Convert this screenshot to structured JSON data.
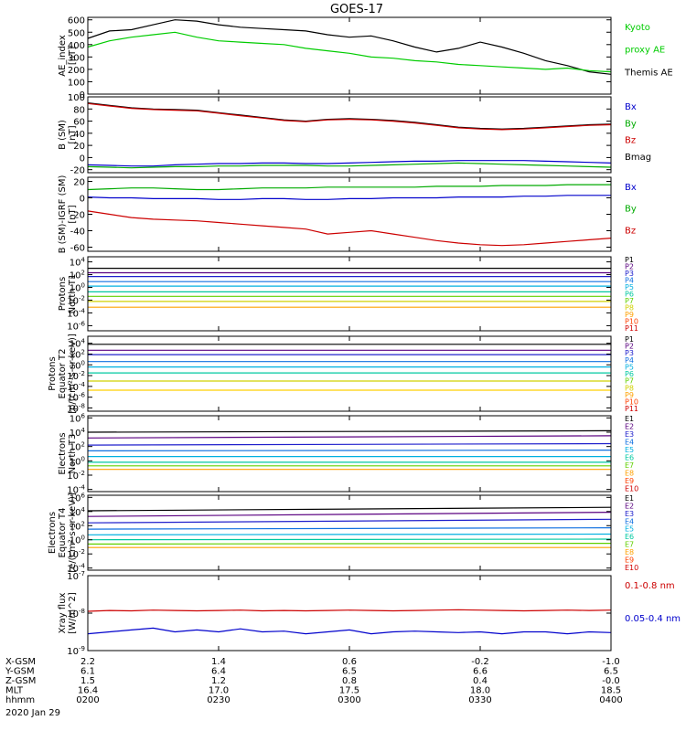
{
  "title": "GOES-17",
  "panels": [
    {
      "id": "ae",
      "ylabel": [
        "AE_index",
        "[nT]"
      ],
      "ticks": [
        "600",
        "500",
        "400",
        "300",
        "200",
        "100",
        "0"
      ],
      "tick_values": [
        600,
        500,
        400,
        300,
        200,
        100,
        0
      ],
      "ylim": [
        0,
        620
      ],
      "log": false,
      "legend": [
        {
          "text": "Kyoto",
          "color": "#00cc00"
        },
        {
          "text": "proxy AE",
          "color": "#00cc00"
        },
        {
          "text": "Themis AE",
          "color": "#000000"
        }
      ],
      "series": [
        {
          "color": "#000000",
          "values": [
            450,
            510,
            520,
            560,
            600,
            590,
            560,
            540,
            530,
            520,
            510,
            480,
            460,
            470,
            430,
            380,
            340,
            370,
            420,
            380,
            330,
            270,
            230,
            180,
            160
          ]
        },
        {
          "color": "#00cc00",
          "values": [
            380,
            430,
            460,
            480,
            500,
            460,
            430,
            420,
            410,
            400,
            370,
            350,
            330,
            300,
            290,
            270,
            260,
            240,
            230,
            220,
            210,
            200,
            210,
            190,
            180
          ]
        }
      ]
    },
    {
      "id": "b",
      "ylabel": [
        "B (SM)",
        "[nT]"
      ],
      "ticks": [
        "100",
        "80",
        "60",
        "40",
        "20",
        "0",
        "-20"
      ],
      "tick_values": [
        100,
        80,
        60,
        40,
        20,
        0,
        -20
      ],
      "ylim": [
        -25,
        100
      ],
      "log": false,
      "legend": [
        {
          "text": "Bx",
          "color": "#0000cc"
        },
        {
          "text": "By",
          "color": "#00aa00"
        },
        {
          "text": "Bz",
          "color": "#cc0000"
        },
        {
          "text": "Bmag",
          "color": "#000000"
        }
      ],
      "series": [
        {
          "color": "#000000",
          "values": [
            90,
            86,
            82,
            80,
            79,
            78,
            74,
            70,
            66,
            62,
            60,
            63,
            64,
            63,
            61,
            58,
            54,
            50,
            48,
            47,
            48,
            50,
            52,
            54,
            55
          ]
        },
        {
          "color": "#cc0000",
          "values": [
            89,
            85,
            81,
            79,
            78,
            77,
            73,
            69,
            65,
            61,
            59,
            62,
            63,
            62,
            60,
            57,
            53,
            49,
            47,
            46,
            47,
            49,
            51,
            53,
            54
          ]
        },
        {
          "color": "#0000cc",
          "values": [
            -12,
            -13,
            -14,
            -14,
            -12,
            -11,
            -10,
            -10,
            -9,
            -9,
            -10,
            -10,
            -9,
            -8,
            -7,
            -6,
            -6,
            -5,
            -5,
            -5,
            -5,
            -6,
            -7,
            -8,
            -9
          ]
        },
        {
          "color": "#00aa00",
          "values": [
            -15,
            -16,
            -17,
            -16,
            -15,
            -15,
            -14,
            -14,
            -13,
            -13,
            -13,
            -14,
            -14,
            -13,
            -12,
            -11,
            -10,
            -9,
            -10,
            -11,
            -12,
            -13,
            -14,
            -15,
            -16
          ]
        }
      ]
    },
    {
      "id": "db",
      "ylabel": [
        "B (SM)-IGRF (SM)",
        "[nT]"
      ],
      "ticks": [
        "20",
        "0",
        "-20",
        "-40",
        "-60"
      ],
      "tick_values": [
        20,
        0,
        -20,
        -40,
        -60
      ],
      "ylim": [
        -65,
        25
      ],
      "log": false,
      "legend": [
        {
          "text": "Bx",
          "color": "#0000cc"
        },
        {
          "text": "By",
          "color": "#00aa00"
        },
        {
          "text": "Bz",
          "color": "#cc0000"
        }
      ],
      "series": [
        {
          "color": "#00aa00",
          "values": [
            10,
            11,
            12,
            12,
            11,
            10,
            10,
            11,
            12,
            12,
            12,
            13,
            13,
            13,
            13,
            13,
            14,
            14,
            14,
            15,
            15,
            15,
            16,
            16,
            16
          ]
        },
        {
          "color": "#0000cc",
          "values": [
            1,
            0,
            0,
            -1,
            -1,
            -1,
            -2,
            -2,
            -1,
            -1,
            -2,
            -2,
            -1,
            -1,
            0,
            0,
            0,
            1,
            1,
            1,
            2,
            2,
            3,
            3,
            3
          ]
        },
        {
          "color": "#cc0000",
          "values": [
            -16,
            -20,
            -24,
            -26,
            -27,
            -28,
            -30,
            -32,
            -34,
            -36,
            -38,
            -44,
            -42,
            -40,
            -44,
            -48,
            -52,
            -55,
            -57,
            -58,
            -57,
            -55,
            -53,
            -51,
            -49
          ]
        }
      ]
    },
    {
      "id": "pn",
      "ylabel": [
        "Protons",
        "North T1"
      ],
      "ticks": [
        "10^4",
        "10^2",
        "10^0",
        "10^-2",
        "10^-4",
        "10^-6"
      ],
      "tick_values": [
        4,
        2,
        0,
        -2,
        -4,
        -6
      ],
      "ylim": [
        -6.8,
        4.8
      ],
      "log": true,
      "legend": [
        {
          "text": "P1",
          "color": "#000000"
        },
        {
          "text": "P2",
          "color": "#5a0080"
        },
        {
          "text": "P3",
          "color": "#2020cc"
        },
        {
          "text": "P4",
          "color": "#1070e0"
        },
        {
          "text": "P5",
          "color": "#00b0e0"
        },
        {
          "text": "P6",
          "color": "#00c8a0"
        },
        {
          "text": "P7",
          "color": "#60d000"
        },
        {
          "text": "P8",
          "color": "#d0d000"
        },
        {
          "text": "P9",
          "color": "#ffa000"
        },
        {
          "text": "P10",
          "color": "#ff4000"
        },
        {
          "text": "P11",
          "color": "#d00000"
        }
      ],
      "series": [
        {
          "color": "#000000",
          "levels": [
            3.0,
            3.0
          ]
        },
        {
          "color": "#5a0080",
          "levels": [
            2.3,
            2.3
          ]
        },
        {
          "color": "#2020cc",
          "levels": [
            1.7,
            1.7
          ]
        },
        {
          "color": "#1070e0",
          "levels": [
            0.9,
            0.9
          ]
        },
        {
          "color": "#00b0e0",
          "levels": [
            0.2,
            0.2
          ]
        },
        {
          "color": "#00c8a0",
          "levels": [
            -0.7,
            -0.7
          ]
        },
        {
          "color": "#60d000",
          "levels": [
            -1.4,
            -1.4
          ]
        },
        {
          "color": "#d0d000",
          "levels": [
            -2.2,
            -2.2
          ]
        },
        {
          "color": "#ffa000",
          "levels": [
            -3.1,
            -3.1
          ]
        }
      ]
    },
    {
      "id": "pe",
      "ylabel": [
        "Protons",
        "Equator T2",
        "[p/(cm²-s-sr-keV)]"
      ],
      "ticks": [
        "10^4",
        "10^2",
        "10^0",
        "10^-2",
        "10^-4",
        "10^-6",
        "10^-8"
      ],
      "tick_values": [
        4,
        2,
        0,
        -2,
        -4,
        -6,
        -8
      ],
      "ylim": [
        -8.6,
        5.3
      ],
      "log": true,
      "legend": [
        {
          "text": "P1",
          "color": "#000000"
        },
        {
          "text": "P2",
          "color": "#5a0080"
        },
        {
          "text": "P3",
          "color": "#2020cc"
        },
        {
          "text": "P4",
          "color": "#1070e0"
        },
        {
          "text": "P5",
          "color": "#00b0e0"
        },
        {
          "text": "P6",
          "color": "#00c8a0"
        },
        {
          "text": "P7",
          "color": "#60d000"
        },
        {
          "text": "P8",
          "color": "#d0d000"
        },
        {
          "text": "P9",
          "color": "#ffa000"
        },
        {
          "text": "P10",
          "color": "#ff4000"
        },
        {
          "text": "P11",
          "color": "#d00000"
        }
      ],
      "series": [
        {
          "color": "#000000",
          "levels": [
            3.8,
            3.8
          ]
        },
        {
          "color": "#5a0080",
          "levels": [
            2.7,
            2.7
          ]
        },
        {
          "color": "#2020cc",
          "levels": [
            1.9,
            1.9
          ]
        },
        {
          "color": "#1070e0",
          "levels": [
            0.6,
            0.6
          ]
        },
        {
          "color": "#00b0e0",
          "levels": [
            -0.4,
            -0.4
          ]
        },
        {
          "color": "#00c8a0",
          "levels": [
            -1.5,
            -1.5
          ]
        },
        {
          "color": "#d0d000",
          "levels": [
            -3.0,
            -3.0
          ]
        },
        {
          "color": "#ffd000",
          "levels": [
            -4.7,
            -4.7
          ]
        }
      ]
    },
    {
      "id": "en",
      "ylabel": [
        "Electrons",
        "North T3"
      ],
      "ticks": [
        "10^6",
        "10^4",
        "10^2",
        "10^0",
        "10^-2",
        "10^-4"
      ],
      "tick_values": [
        6,
        4,
        2,
        0,
        -2,
        -4
      ],
      "ylim": [
        -4.3,
        6.3
      ],
      "log": true,
      "legend": [
        {
          "text": "E1",
          "color": "#000000"
        },
        {
          "text": "E2",
          "color": "#5a0080"
        },
        {
          "text": "E3",
          "color": "#2020cc"
        },
        {
          "text": "E4",
          "color": "#1070e0"
        },
        {
          "text": "E5",
          "color": "#00b0e0"
        },
        {
          "text": "E6",
          "color": "#00c8a0"
        },
        {
          "text": "E7",
          "color": "#60d000"
        },
        {
          "text": "E8",
          "color": "#ffa000"
        },
        {
          "text": "E9",
          "color": "#ff4000"
        },
        {
          "text": "E10",
          "color": "#d00000"
        }
      ],
      "series": [
        {
          "color": "#000000",
          "levels": [
            4.0,
            4.2
          ]
        },
        {
          "color": "#5a0080",
          "levels": [
            3.2,
            3.5
          ]
        },
        {
          "color": "#2020cc",
          "levels": [
            2.2,
            2.4
          ]
        },
        {
          "color": "#1070e0",
          "levels": [
            1.4,
            1.5
          ]
        },
        {
          "color": "#00b0e0",
          "levels": [
            0.6,
            0.6
          ]
        },
        {
          "color": "#00c8a0",
          "levels": [
            -0.2,
            -0.2
          ]
        },
        {
          "color": "#60d000",
          "levels": [
            -0.7,
            -0.7
          ]
        },
        {
          "color": "#ffa000",
          "levels": [
            -1.2,
            -1.2
          ]
        }
      ]
    },
    {
      "id": "ee",
      "ylabel": [
        "Electrons",
        "Equator T4",
        "[e/(cm²-s-sr-keV)]"
      ],
      "ticks": [
        "10^6",
        "10^4",
        "10^2",
        "10^0",
        "10^-2",
        "10^-4"
      ],
      "tick_values": [
        6,
        4,
        2,
        0,
        -2,
        -4
      ],
      "ylim": [
        -4.3,
        6.3
      ],
      "log": true,
      "legend": [
        {
          "text": "E1",
          "color": "#000000"
        },
        {
          "text": "E2",
          "color": "#5a0080"
        },
        {
          "text": "E3",
          "color": "#2020cc"
        },
        {
          "text": "E4",
          "color": "#1070e0"
        },
        {
          "text": "E5",
          "color": "#00b0e0"
        },
        {
          "text": "E6",
          "color": "#00c8a0"
        },
        {
          "text": "E7",
          "color": "#60d000"
        },
        {
          "text": "E8",
          "color": "#ffa000"
        },
        {
          "text": "E9",
          "color": "#ff4000"
        },
        {
          "text": "E10",
          "color": "#d00000"
        }
      ],
      "series": [
        {
          "color": "#000000",
          "levels": [
            4.1,
            4.6
          ]
        },
        {
          "color": "#5a0080",
          "levels": [
            3.3,
            3.9
          ]
        },
        {
          "color": "#2020cc",
          "levels": [
            2.4,
            2.9
          ]
        },
        {
          "color": "#1070e0",
          "levels": [
            1.5,
            1.7
          ]
        },
        {
          "color": "#00b0e0",
          "levels": [
            0.7,
            0.8
          ]
        },
        {
          "color": "#00c8a0",
          "levels": [
            0.0,
            0.1
          ]
        },
        {
          "color": "#60d000",
          "levels": [
            -0.6,
            -0.5
          ]
        },
        {
          "color": "#ffa000",
          "levels": [
            -1.1,
            -1.1
          ]
        }
      ]
    },
    {
      "id": "xray",
      "ylabel": [
        "Xray flux",
        "[W/m^2]"
      ],
      "ticks": [
        "10^-7",
        "10^-8",
        "10^-9"
      ],
      "tick_values": [
        -7,
        -8,
        -9
      ],
      "ylim": [
        -9,
        -7
      ],
      "log": true,
      "legend": [
        {
          "text": "0.1-0.8 nm",
          "color": "#cc0000"
        },
        {
          "text": "0.05-0.4 nm",
          "color": "#0000cc"
        }
      ],
      "series": [
        {
          "color": "#cc0000",
          "values": [
            -7.95,
            -7.93,
            -7.94,
            -7.92,
            -7.93,
            -7.94,
            -7.93,
            -7.92,
            -7.94,
            -7.93,
            -7.94,
            -7.93,
            -7.92,
            -7.93,
            -7.94,
            -7.93,
            -7.92,
            -7.91,
            -7.92,
            -7.93,
            -7.94,
            -7.93,
            -7.92,
            -7.93,
            -7.92
          ]
        },
        {
          "color": "#0000cc",
          "values": [
            -8.55,
            -8.5,
            -8.45,
            -8.4,
            -8.5,
            -8.45,
            -8.5,
            -8.42,
            -8.5,
            -8.48,
            -8.55,
            -8.5,
            -8.45,
            -8.55,
            -8.5,
            -8.48,
            -8.5,
            -8.52,
            -8.5,
            -8.55,
            -8.5,
            -8.5,
            -8.55,
            -8.5,
            -8.52
          ]
        }
      ]
    }
  ],
  "xaxis": {
    "rows": [
      {
        "label": "X-GSM",
        "values": [
          "2.2",
          "1.4",
          "0.6",
          "-0.2",
          "-1.0"
        ]
      },
      {
        "label": "Y-GSM",
        "values": [
          "6.1",
          "6.4",
          "6.5",
          "6.6",
          "6.5"
        ]
      },
      {
        "label": "Z-GSM",
        "values": [
          "1.5",
          "1.2",
          "0.8",
          "0.4",
          "-0.0"
        ]
      },
      {
        "label": "MLT",
        "values": [
          "16.4",
          "17.0",
          "17.5",
          "18.0",
          "18.5"
        ]
      },
      {
        "label": "hhmm",
        "values": [
          "0200",
          "0230",
          "0300",
          "0330",
          "0400"
        ]
      }
    ],
    "date": "2020 Jan 29"
  },
  "chart_data": {
    "type": "line",
    "title": "GOES-17",
    "x": [
      "0200",
      "0230",
      "0300",
      "0330",
      "0400"
    ],
    "note_units": "panel values per panels[].series"
  }
}
